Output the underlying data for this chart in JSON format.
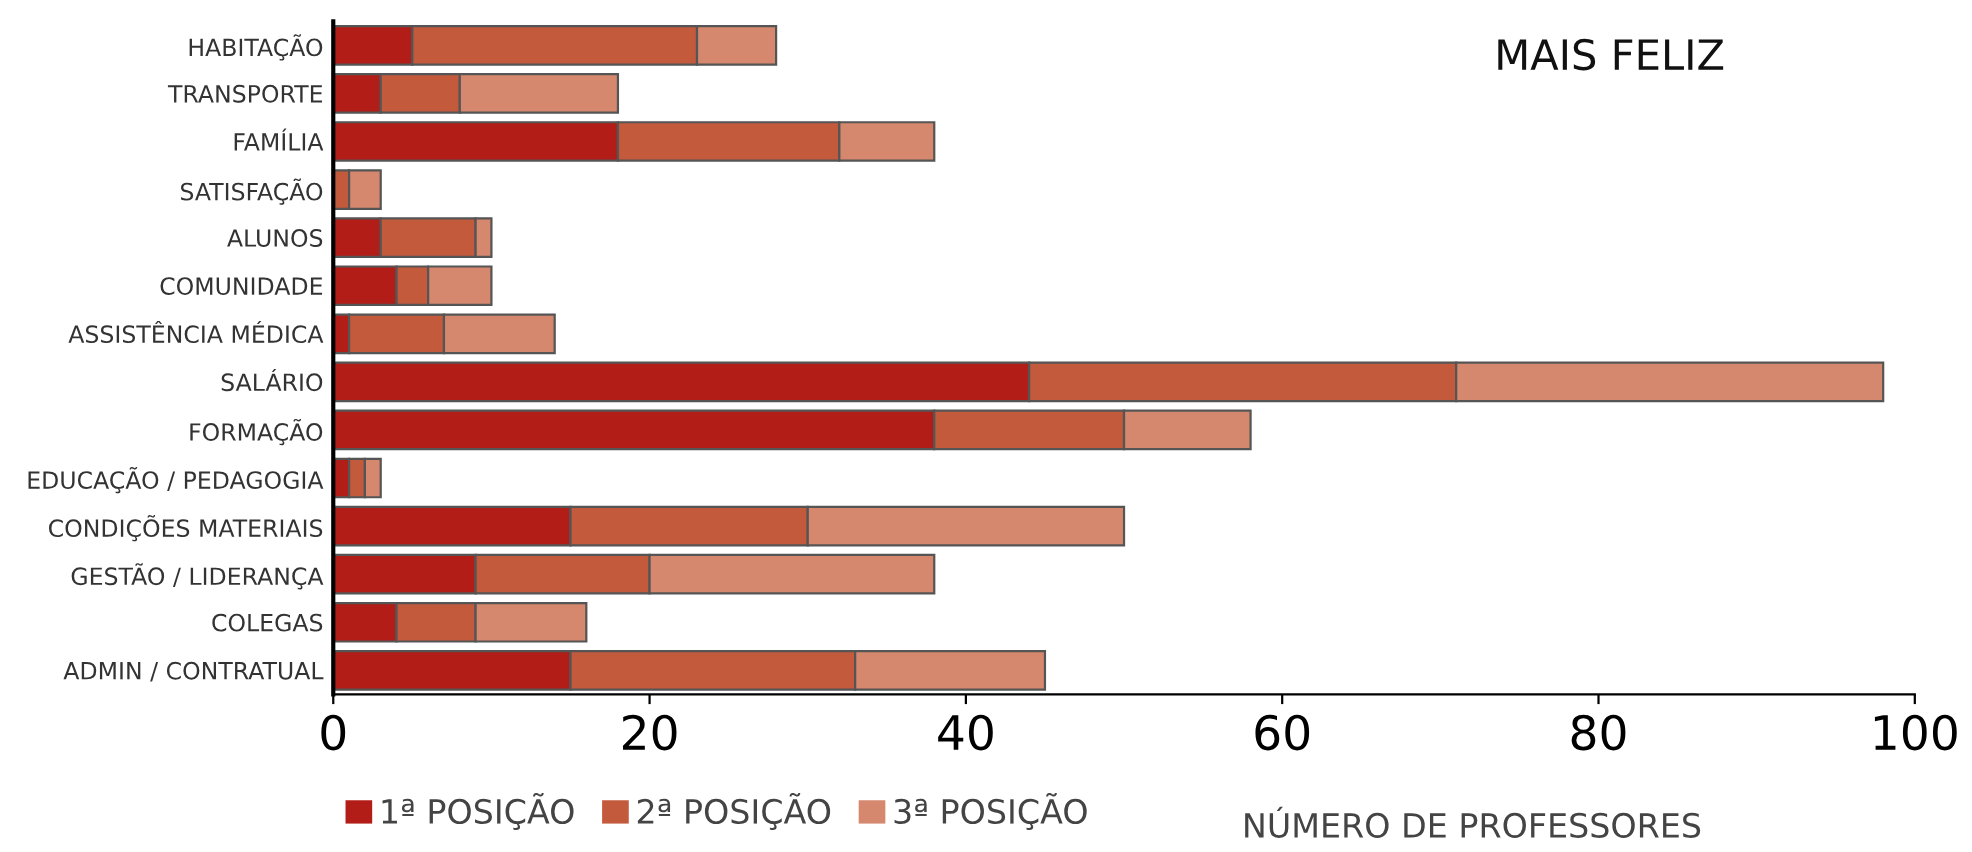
{
  "chart_data": {
    "type": "bar",
    "orientation": "horizontal",
    "stacked": true,
    "title": "MAIS FELIZ",
    "xlabel": "NÚMERO DE PROFESSORES",
    "categories": [
      "HABITAÇÃO",
      "TRANSPORTE",
      "FAMÍLIA",
      "SATISFAÇÃO",
      "ALUNOS",
      "COMUNIDADE",
      "ASSISTÊNCIA MÉDICA",
      "SALÁRIO",
      "FORMAÇÃO",
      "EDUCAÇÃO / PEDAGOGIA",
      "CONDIÇÕES MATERIAIS",
      "GESTÃO / LIDERANÇA",
      "COLEGAS",
      "ADMIN / CONTRATUAL"
    ],
    "series": [
      {
        "name": "1ª POSIÇÃO",
        "color": "#b31d18",
        "values": [
          5,
          3,
          18,
          0,
          3,
          4,
          1,
          44,
          38,
          1,
          15,
          9,
          4,
          15
        ]
      },
      {
        "name": "2ª POSIÇÃO",
        "color": "#c45a3c",
        "values": [
          18,
          5,
          14,
          1,
          6,
          2,
          6,
          27,
          12,
          1,
          15,
          11,
          5,
          18
        ]
      },
      {
        "name": "3ª POSIÇÃO",
        "color": "#d6886e",
        "values": [
          5,
          10,
          6,
          2,
          1,
          4,
          7,
          27,
          8,
          1,
          20,
          18,
          7,
          12
        ]
      }
    ],
    "xlim": [
      0,
      100
    ],
    "xticks": [
      0,
      20,
      40,
      60,
      80,
      100
    ],
    "grid": false,
    "legend": "bottom left"
  }
}
